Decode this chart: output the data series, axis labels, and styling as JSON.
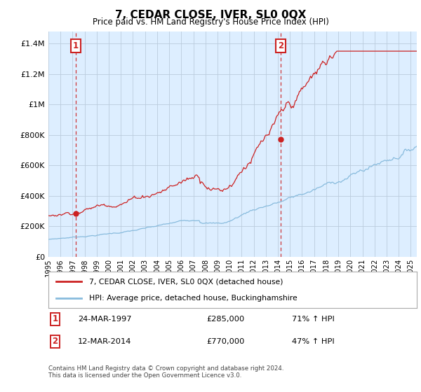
{
  "title": "7, CEDAR CLOSE, IVER, SL0 0QX",
  "subtitle": "Price paid vs. HM Land Registry's House Price Index (HPI)",
  "ylabel_ticks": [
    "£0",
    "£200K",
    "£400K",
    "£600K",
    "£800K",
    "£1M",
    "£1.2M",
    "£1.4M"
  ],
  "ytick_values": [
    0,
    200000,
    400000,
    600000,
    800000,
    1000000,
    1200000,
    1400000
  ],
  "ylim": [
    0,
    1480000
  ],
  "xlim_min": 1995.0,
  "xlim_max": 2025.5,
  "sale1_x": 1997.25,
  "sale1_price": 285000,
  "sale1_date": "24-MAR-1997",
  "sale1_label": "71% ↑ HPI",
  "sale2_x": 2014.25,
  "sale2_price": 770000,
  "sale2_date": "12-MAR-2014",
  "sale2_label": "47% ↑ HPI",
  "legend_line1": "7, CEDAR CLOSE, IVER, SL0 0QX (detached house)",
  "legend_line2": "HPI: Average price, detached house, Buckinghamshire",
  "footer": "Contains HM Land Registry data © Crown copyright and database right 2024.\nThis data is licensed under the Open Government Licence v3.0.",
  "hpi_color": "#88bbdd",
  "price_color": "#cc2222",
  "dashed_color": "#cc2222",
  "plot_bg_color": "#ddeeff",
  "background_color": "#ffffff",
  "grid_color": "#bbccdd"
}
